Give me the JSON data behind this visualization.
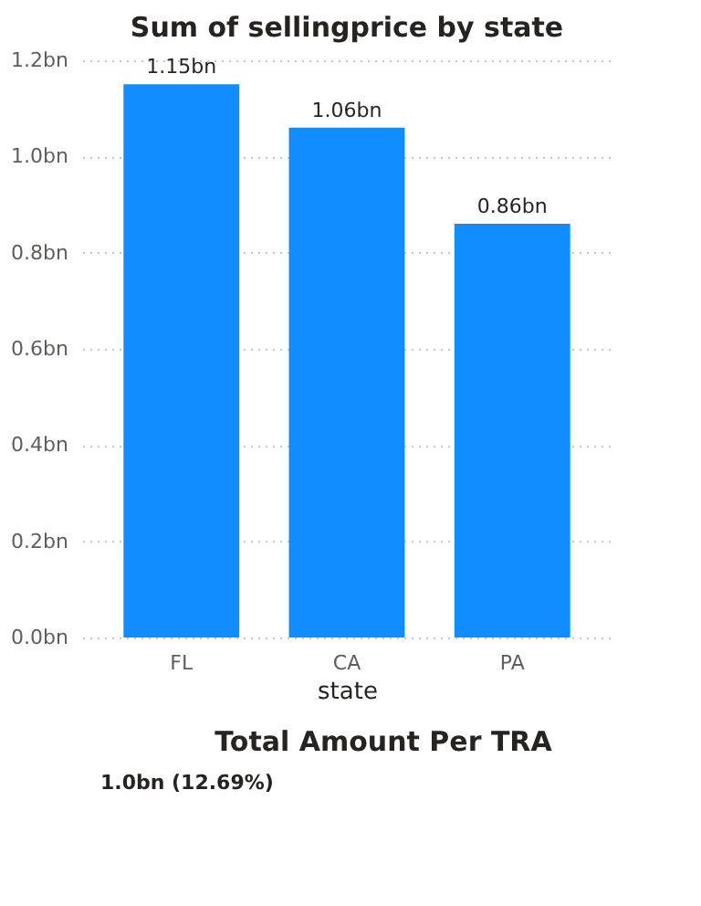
{
  "chart_data": [
    {
      "type": "bar",
      "title": "Sum of sellingprice by state",
      "xlabel": "state",
      "categories": [
        "FL",
        "CA",
        "PA"
      ],
      "series": [
        {
          "color": "#118dff",
          "values": [
            1.15,
            1.06,
            0.86
          ],
          "value_labels": [
            "1.15bn",
            "1.06bn",
            "0.86bn"
          ]
        }
      ],
      "ylim": [
        0,
        1.2
      ],
      "yticks": [
        {
          "value": 0,
          "label": "0.0bn"
        },
        {
          "value": 0.2,
          "label": "0.2bn"
        },
        {
          "value": 0.4,
          "label": "0.4bn"
        },
        {
          "value": 0.6,
          "label": "0.6bn"
        },
        {
          "value": 0.8,
          "label": "0.8bn"
        },
        {
          "value": 1.0,
          "label": "1.0bn"
        },
        {
          "value": 1.2,
          "label": "1.2bn"
        }
      ],
      "grid": "y"
    },
    {
      "type": "other",
      "title": "Total Amount Per TRA",
      "annotations": [
        "1.0bn (12.69%)"
      ]
    }
  ]
}
